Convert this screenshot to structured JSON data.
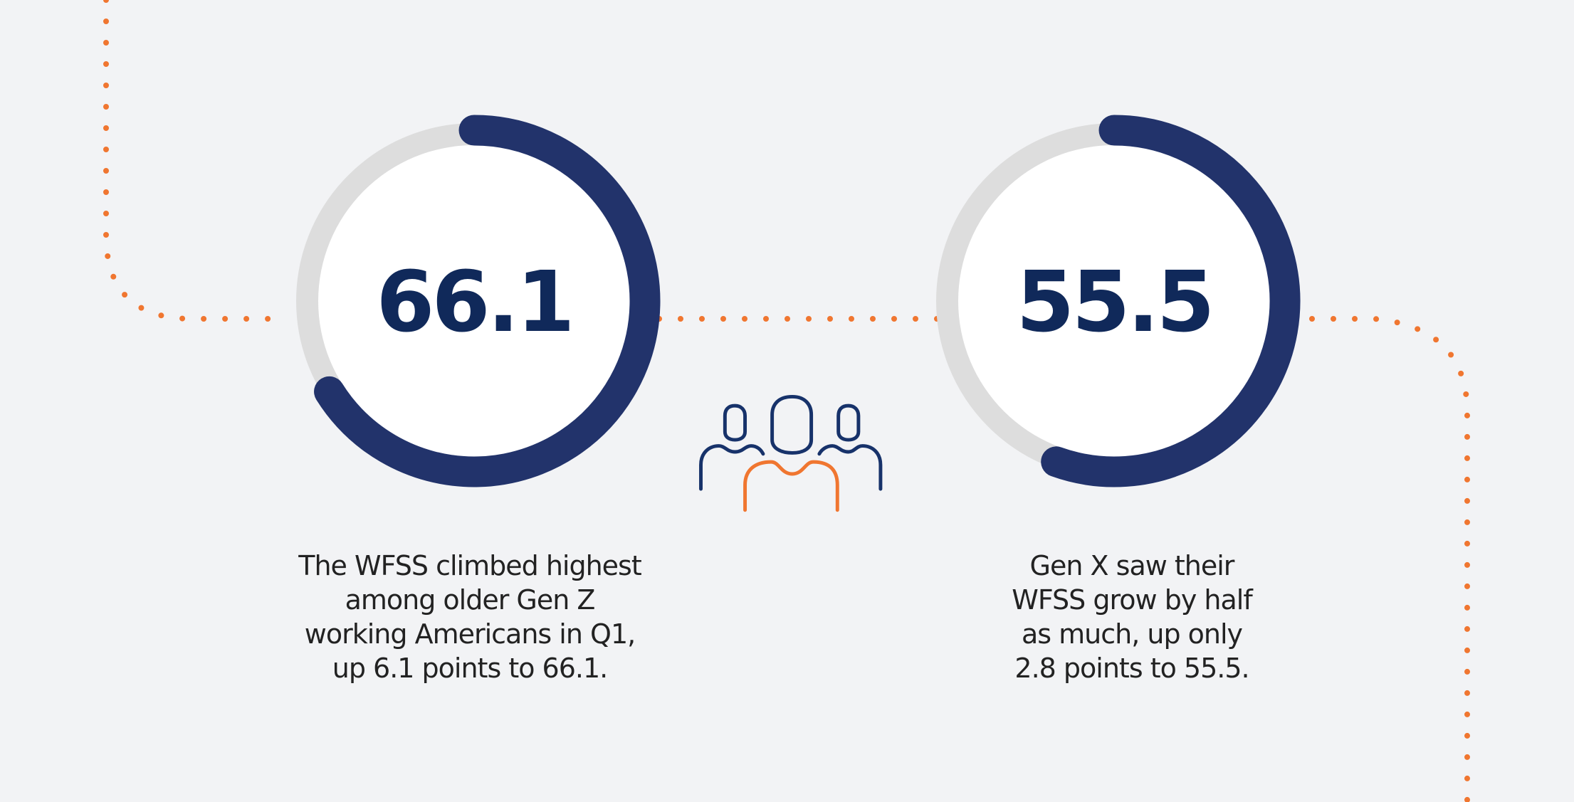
{
  "chart_data": [
    {
      "type": "gauge",
      "value": 66.1,
      "lim": [
        0,
        100
      ],
      "color": "#22336b",
      "track_color": "#dddddd",
      "caption": [
        "The WFSS climbed highest",
        "among older Gen Z",
        "working Americans in Q1,",
        "up 6.1 points to 66.1."
      ]
    },
    {
      "type": "gauge",
      "value": 55.5,
      "lim": [
        0,
        100
      ],
      "color": "#22336b",
      "track_color": "#dddddd",
      "caption": [
        "Gen X saw their",
        "WFSS grow by half",
        "as much, up only",
        "2.8 points to 55.5."
      ]
    }
  ]
}
